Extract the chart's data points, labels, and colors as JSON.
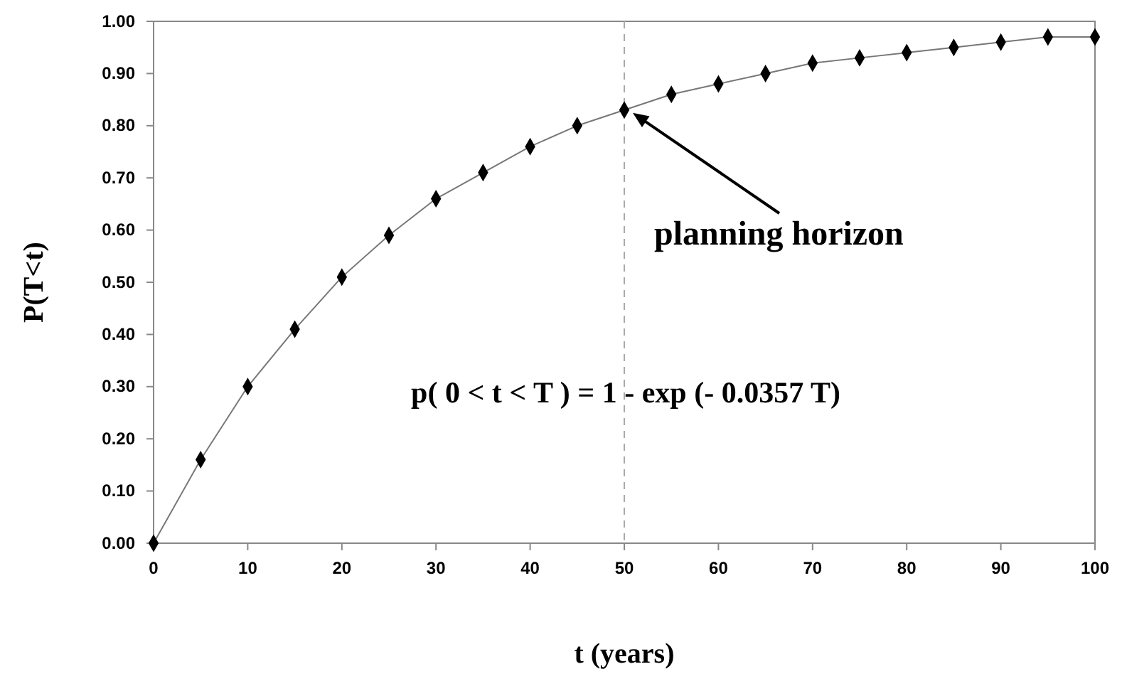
{
  "chart_data": {
    "type": "line",
    "xlabel": "t (years)",
    "ylabel": "P(T<t)",
    "x": [
      0,
      5,
      10,
      15,
      20,
      25,
      30,
      35,
      40,
      45,
      50,
      55,
      60,
      65,
      70,
      75,
      80,
      85,
      90,
      95,
      100
    ],
    "series": [
      {
        "color": "#000000",
        "values": [
          0,
          0.16,
          0.3,
          0.41,
          0.51,
          0.59,
          0.66,
          0.71,
          0.76,
          0.8,
          0.83,
          0.86,
          0.88,
          0.9,
          0.92,
          0.93,
          0.94,
          0.95,
          0.96,
          0.97,
          0.97
        ]
      }
    ],
    "xlim": [
      0,
      100
    ],
    "xticks": [
      0,
      10,
      20,
      30,
      40,
      50,
      60,
      70,
      80,
      90,
      100
    ],
    "ylim": [
      0,
      1
    ],
    "yticks": [
      {
        "value": 0,
        "label": "0.00"
      },
      {
        "value": 0.1,
        "label": "0.10"
      },
      {
        "value": 0.2,
        "label": "0.20"
      },
      {
        "value": 0.3,
        "label": "0.30"
      },
      {
        "value": 0.4,
        "label": "0.40"
      },
      {
        "value": 0.5,
        "label": "0.50"
      },
      {
        "value": 0.6,
        "label": "0.60"
      },
      {
        "value": 0.7,
        "label": "0.70"
      },
      {
        "value": 0.8,
        "label": "0.80"
      },
      {
        "value": 0.9,
        "label": "0.90"
      },
      {
        "value": 1,
        "label": "1.00"
      }
    ],
    "ref_lines": [
      {
        "axis": "x",
        "value": 50,
        "color": "#aaaaaa",
        "line_style": "dashed"
      }
    ],
    "annotations": [
      "planning horizon",
      "p( 0 < t < T ) = 1 - exp (- 0.0357 T)"
    ],
    "marker": "diamond",
    "line_style": "solid",
    "grid": false
  }
}
